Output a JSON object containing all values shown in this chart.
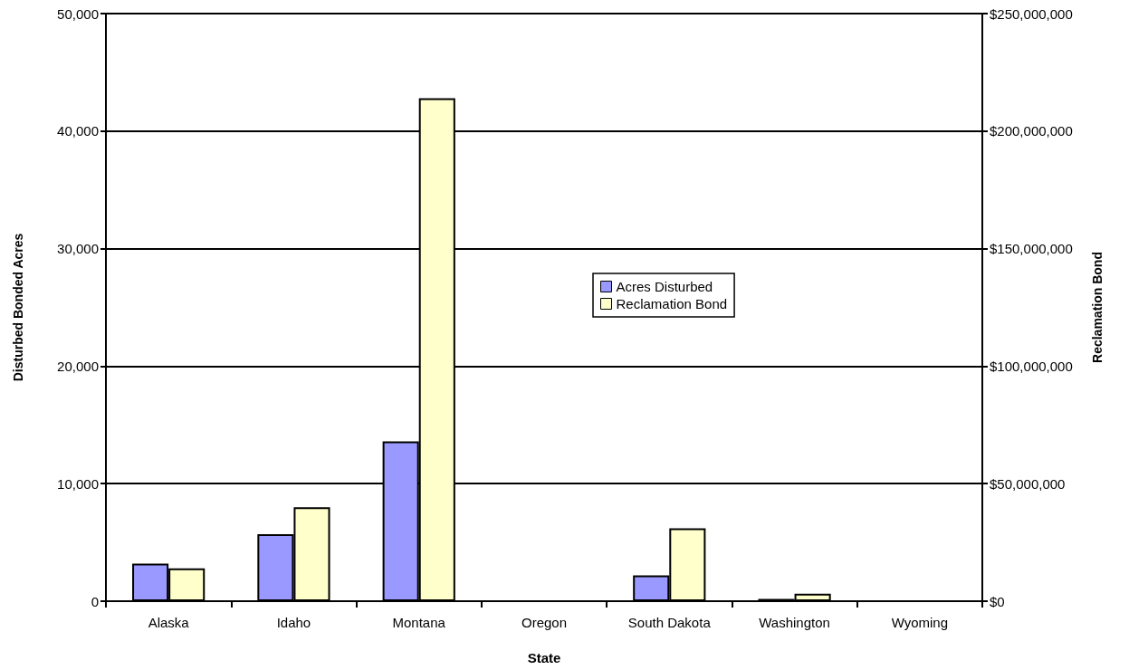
{
  "chart_data": {
    "type": "bar",
    "xlabel": "State",
    "ylabel": "Disturbed Bonded Acres",
    "y2label": "Reclamation Bond",
    "categories": [
      "Alaska",
      "Idaho",
      "Montana",
      "Oregon",
      "South Dakota",
      "Washington",
      "Wyoming"
    ],
    "series": [
      {
        "name": "Acres Disturbed",
        "color": "#9999ff",
        "values": [
          3200,
          5700,
          13600,
          null,
          2200,
          200,
          null
        ]
      },
      {
        "name": "Reclamation Bond",
        "color": "#ffffcc",
        "axis": "y2",
        "values": [
          14000000,
          40000000,
          214000000,
          null,
          31000000,
          3200000,
          null
        ]
      }
    ],
    "ylim": [
      0,
      50000
    ],
    "yticks": [
      0,
      {
        "value": 10000,
        "label": "10,000"
      },
      {
        "value": 20000,
        "label": "20,000"
      },
      {
        "value": 30000,
        "label": "30,000"
      },
      {
        "value": 40000,
        "label": "40,000"
      },
      {
        "value": 50000,
        "label": "50,000"
      }
    ],
    "y2lim": [
      0,
      250000000
    ],
    "y2ticks": [
      {
        "value": 0,
        "label": "$0"
      },
      {
        "value": 50000000,
        "label": "$50,000,000"
      },
      {
        "value": 100000000,
        "label": "$100,000,000"
      },
      {
        "value": 150000000,
        "label": "$150,000,000"
      },
      {
        "value": 200000000,
        "label": "$200,000,000"
      },
      {
        "value": 250000000,
        "label": "$250,000,000"
      }
    ],
    "grid": "y",
    "legend": "center"
  }
}
